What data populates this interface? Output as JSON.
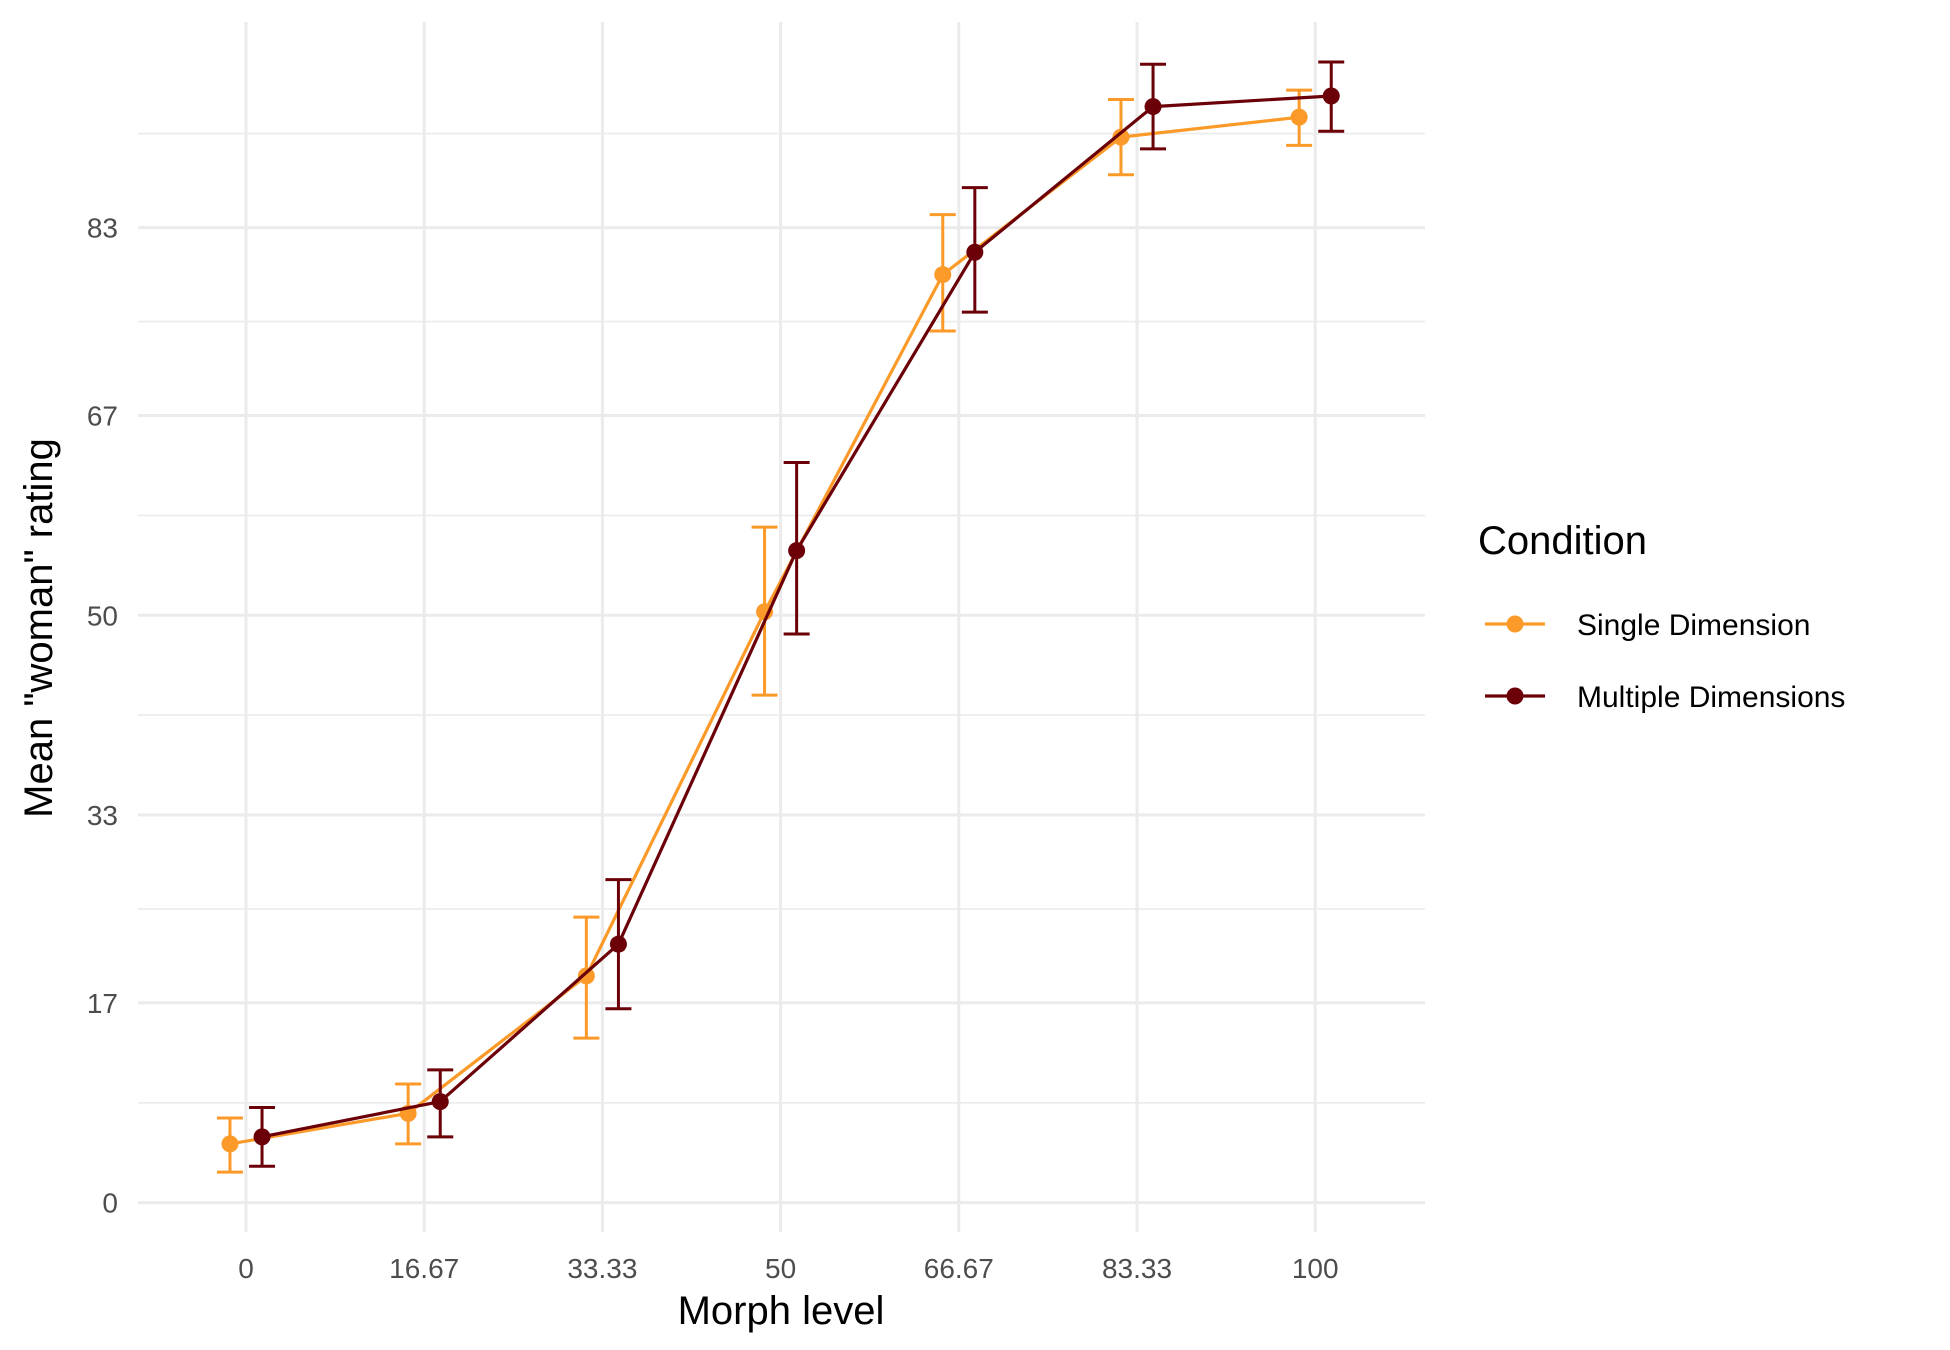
{
  "chart_data": {
    "type": "line",
    "xlabel": "Morph level",
    "ylabel": "Mean \"woman\" rating",
    "x_categories": [
      "0",
      "16.67",
      "33.33",
      "50",
      "66.67",
      "83.33",
      "100"
    ],
    "y_ticks": [
      0,
      17,
      33,
      50,
      67,
      83
    ],
    "y_tick_labels": [
      "0",
      "17",
      "33",
      "50",
      "67",
      "83"
    ],
    "ylim": [
      -2.5,
      100.5
    ],
    "grid": true,
    "legend": {
      "title": "Condition",
      "position": "right"
    },
    "series": [
      {
        "name": "Single Dimension",
        "color": "#FB9A29",
        "values": [
          5.0,
          7.6,
          19.3,
          50.3,
          79.0,
          90.7,
          92.4
        ],
        "err_low": [
          2.6,
          5.0,
          14.0,
          43.2,
          74.2,
          87.5,
          90.0
        ],
        "err_high": [
          7.2,
          10.1,
          24.3,
          57.5,
          84.1,
          93.9,
          94.7
        ]
      },
      {
        "name": "Multiple Dimensions",
        "color": "#6B0008",
        "values": [
          5.6,
          8.6,
          22.0,
          55.5,
          80.9,
          93.3,
          94.2
        ],
        "err_low": [
          3.1,
          5.6,
          16.5,
          48.4,
          75.8,
          89.7,
          91.2
        ],
        "err_high": [
          8.1,
          11.3,
          27.5,
          63.0,
          86.4,
          96.9,
          97.1
        ]
      }
    ],
    "dodge": 0.1
  }
}
